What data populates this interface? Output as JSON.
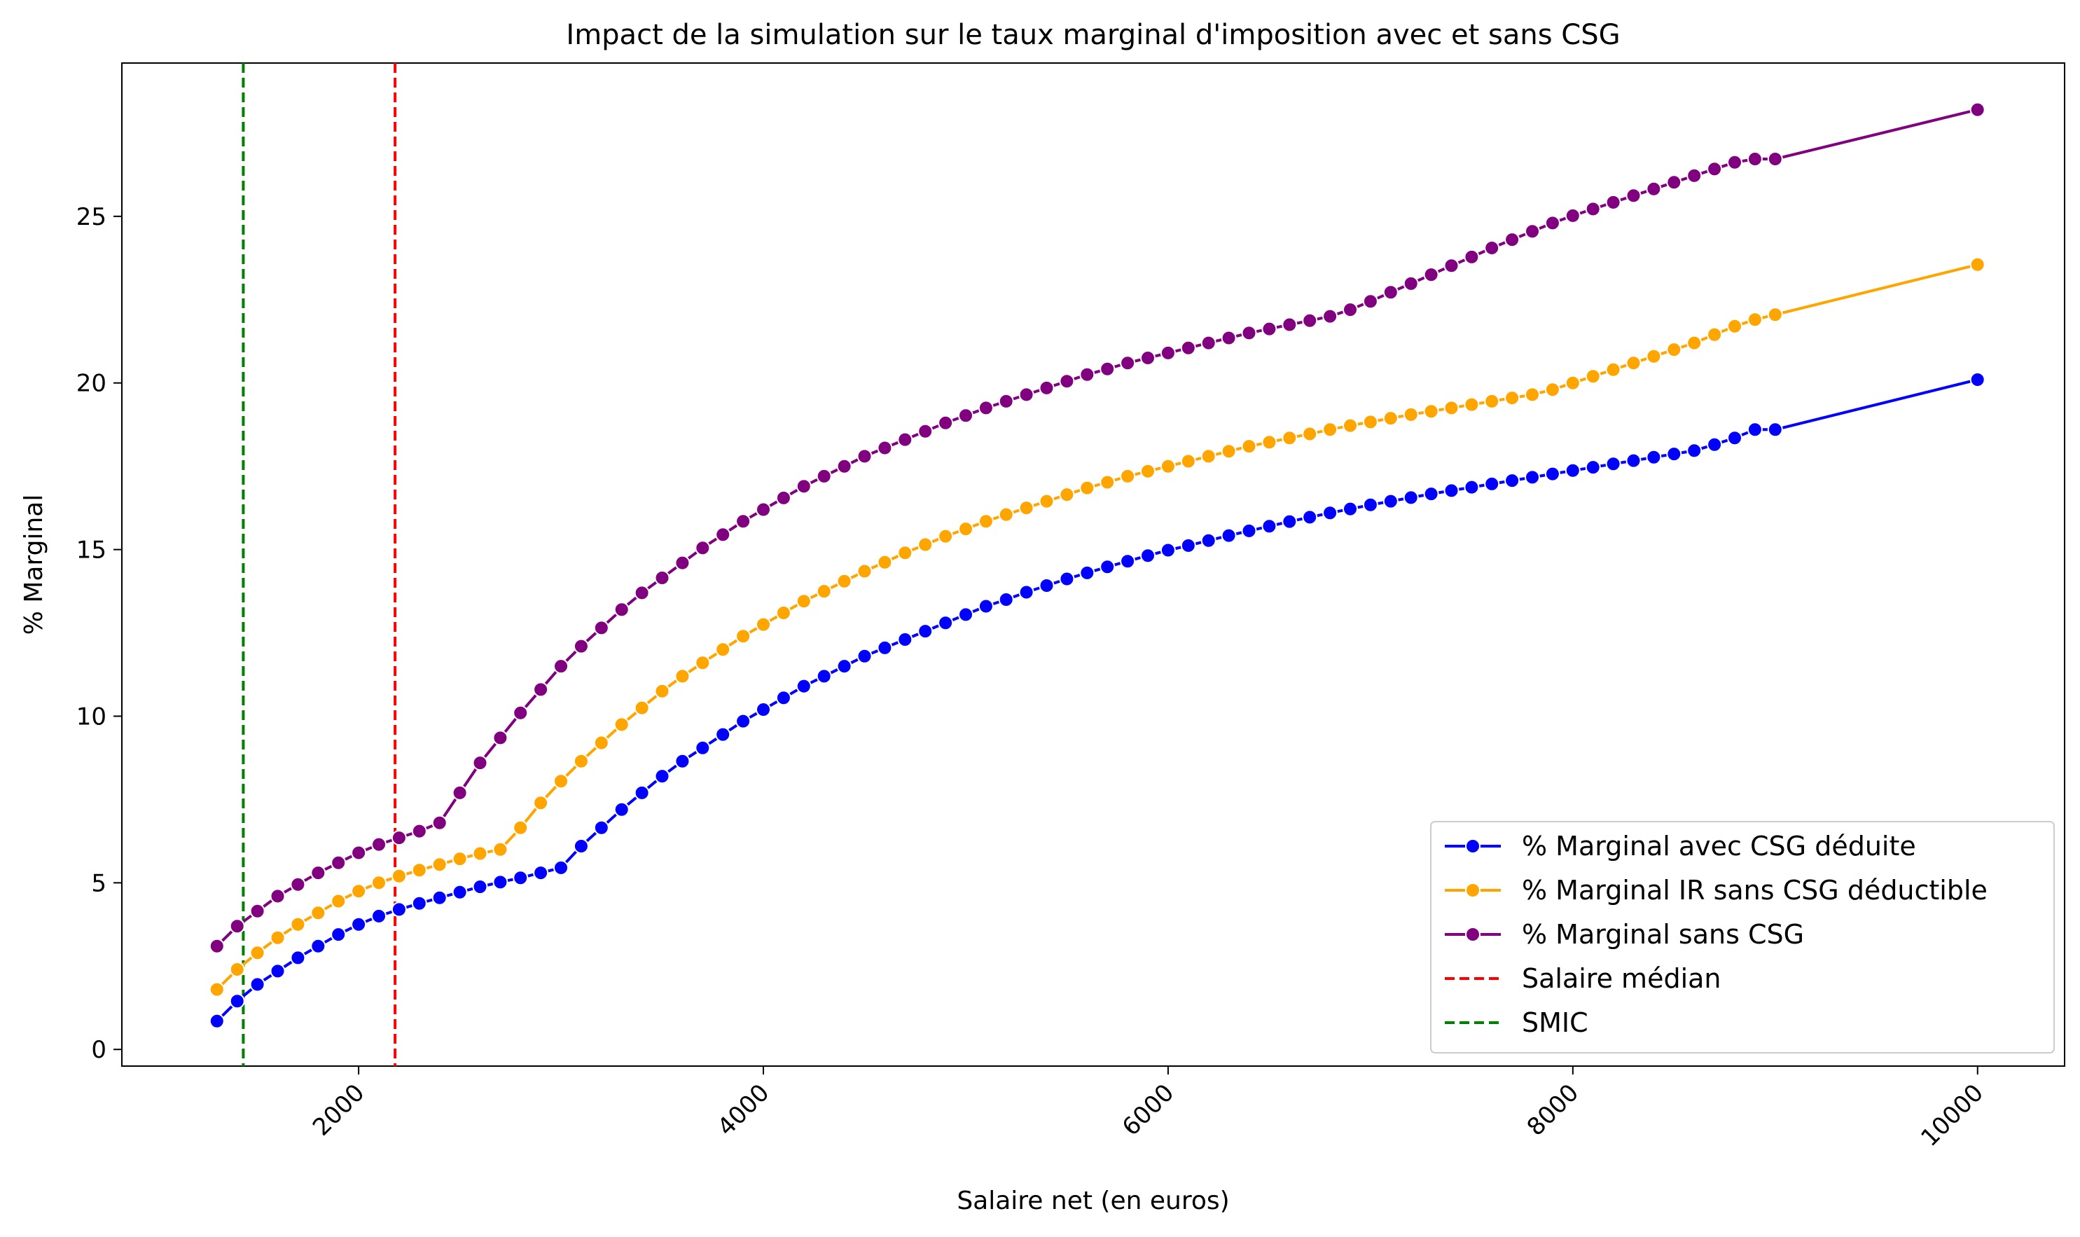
{
  "chart_data": {
    "type": "line",
    "title": "Impact de la simulation sur le taux marginal d'imposition avec et sans CSG",
    "xlabel": "Salaire net (en euros)",
    "ylabel": "% Marginal",
    "xlim": [
      830,
      10430
    ],
    "ylim": [
      -0.5,
      29.6
    ],
    "xticks": [
      2000,
      4000,
      6000,
      8000,
      10000
    ],
    "yticks": [
      0,
      5,
      10,
      15,
      20,
      25
    ],
    "grid": false,
    "legend_position": "lower-right",
    "x": [
      1300,
      1400,
      1500,
      1600,
      1700,
      1800,
      1900,
      2000,
      2100,
      2200,
      2300,
      2400,
      2500,
      2600,
      2700,
      2800,
      2900,
      3000,
      3100,
      3200,
      3300,
      3400,
      3500,
      3600,
      3700,
      3800,
      3900,
      4000,
      4100,
      4200,
      4300,
      4400,
      4500,
      4600,
      4700,
      4800,
      4900,
      5000,
      5100,
      5200,
      5300,
      5400,
      5500,
      5600,
      5700,
      5800,
      5900,
      6000,
      6100,
      6200,
      6300,
      6400,
      6500,
      6600,
      6700,
      6800,
      6900,
      7000,
      7100,
      7200,
      7300,
      7400,
      7500,
      7600,
      7700,
      7800,
      7900,
      8000,
      8100,
      8200,
      8300,
      8400,
      8500,
      8600,
      8700,
      8800,
      8900,
      9000,
      10000
    ],
    "series": [
      {
        "name": "% Marginal avec CSG déduite",
        "color": "#0000ff",
        "values": [
          0.85,
          1.45,
          1.95,
          2.35,
          2.75,
          3.1,
          3.45,
          3.75,
          4.0,
          4.2,
          4.38,
          4.55,
          4.72,
          4.88,
          5.02,
          5.15,
          5.3,
          5.45,
          6.1,
          6.65,
          7.2,
          7.7,
          8.2,
          8.65,
          9.05,
          9.45,
          9.85,
          10.2,
          10.55,
          10.9,
          11.2,
          11.5,
          11.8,
          12.05,
          12.3,
          12.55,
          12.8,
          13.05,
          13.3,
          13.5,
          13.72,
          13.92,
          14.12,
          14.3,
          14.48,
          14.65,
          14.82,
          14.98,
          15.12,
          15.27,
          15.42,
          15.56,
          15.7,
          15.84,
          15.97,
          16.1,
          16.22,
          16.34,
          16.45,
          16.56,
          16.67,
          16.77,
          16.87,
          16.97,
          17.07,
          17.17,
          17.27,
          17.37,
          17.47,
          17.57,
          17.67,
          17.77,
          17.87,
          17.97,
          18.15,
          18.35,
          18.6,
          18.6,
          20.1
        ]
      },
      {
        "name": "% Marginal IR sans CSG déductible",
        "color": "#ffa500",
        "values": [
          1.8,
          2.4,
          2.9,
          3.35,
          3.75,
          4.1,
          4.45,
          4.75,
          5.0,
          5.2,
          5.38,
          5.55,
          5.72,
          5.88,
          6.0,
          6.65,
          7.4,
          8.05,
          8.65,
          9.2,
          9.75,
          10.25,
          10.75,
          11.2,
          11.6,
          12.0,
          12.4,
          12.75,
          13.1,
          13.45,
          13.75,
          14.05,
          14.35,
          14.62,
          14.9,
          15.15,
          15.4,
          15.62,
          15.85,
          16.05,
          16.25,
          16.45,
          16.65,
          16.85,
          17.02,
          17.2,
          17.35,
          17.5,
          17.65,
          17.8,
          17.95,
          18.1,
          18.22,
          18.35,
          18.47,
          18.6,
          18.72,
          18.83,
          18.94,
          19.05,
          19.15,
          19.25,
          19.35,
          19.45,
          19.55,
          19.65,
          19.8,
          20.0,
          20.2,
          20.4,
          20.6,
          20.8,
          21.0,
          21.2,
          21.45,
          21.7,
          21.9,
          22.05,
          23.55
        ]
      },
      {
        "name": "% Marginal sans CSG",
        "color": "#800080",
        "values": [
          3.1,
          3.7,
          4.15,
          4.6,
          4.95,
          5.3,
          5.6,
          5.9,
          6.15,
          6.35,
          6.55,
          6.8,
          7.7,
          8.6,
          9.35,
          10.1,
          10.8,
          11.5,
          12.1,
          12.65,
          13.2,
          13.7,
          14.15,
          14.6,
          15.05,
          15.45,
          15.85,
          16.2,
          16.55,
          16.9,
          17.2,
          17.5,
          17.8,
          18.05,
          18.3,
          18.55,
          18.8,
          19.02,
          19.25,
          19.45,
          19.65,
          19.85,
          20.05,
          20.25,
          20.42,
          20.6,
          20.75,
          20.9,
          21.05,
          21.2,
          21.35,
          21.5,
          21.62,
          21.75,
          21.87,
          22.0,
          22.2,
          22.45,
          22.72,
          22.98,
          23.25,
          23.52,
          23.78,
          24.05,
          24.3,
          24.55,
          24.8,
          25.02,
          25.22,
          25.42,
          25.62,
          25.82,
          26.02,
          26.22,
          26.42,
          26.62,
          26.72,
          26.72,
          28.2
        ]
      }
    ],
    "reference_lines": [
      {
        "name": "Salaire médian",
        "x": 2180,
        "color": "#ff0000"
      },
      {
        "name": "SMIC",
        "x": 1430,
        "color": "#008000"
      }
    ]
  }
}
